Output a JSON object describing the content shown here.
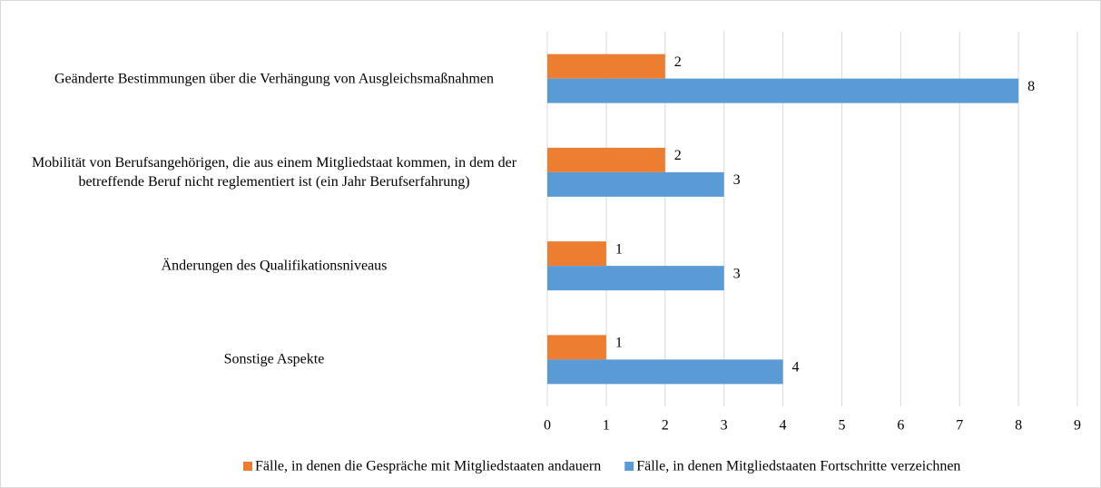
{
  "chart_data": {
    "type": "bar",
    "orientation": "horizontal",
    "categories": [
      "Geänderte Bestimmungen über die Verhängung von Ausgleichsmaßnahmen",
      "Mobilität von Berufsangehörigen, die aus einem Mitgliedstaat kommen, in dem der betreffende Beruf nicht reglementiert ist (ein Jahr Berufserfahrung)",
      "Änderungen des Qualifikationsniveaus",
      "Sonstige Aspekte"
    ],
    "series": [
      {
        "name": "Fälle, in denen die Gespräche mit Mitgliedstaaten andauern",
        "color": "#ed7d31",
        "values": [
          2,
          2,
          1,
          1
        ]
      },
      {
        "name": "Fälle, in denen Mitgliedstaaten Fortschritte verzeichnen",
        "color": "#5b9bd5",
        "values": [
          8,
          3,
          3,
          4
        ]
      }
    ],
    "xlim": [
      0,
      9
    ],
    "xticks": [
      0,
      1,
      2,
      3,
      4,
      5,
      6,
      7,
      8,
      9
    ],
    "grid": true,
    "legend": "bottom"
  }
}
